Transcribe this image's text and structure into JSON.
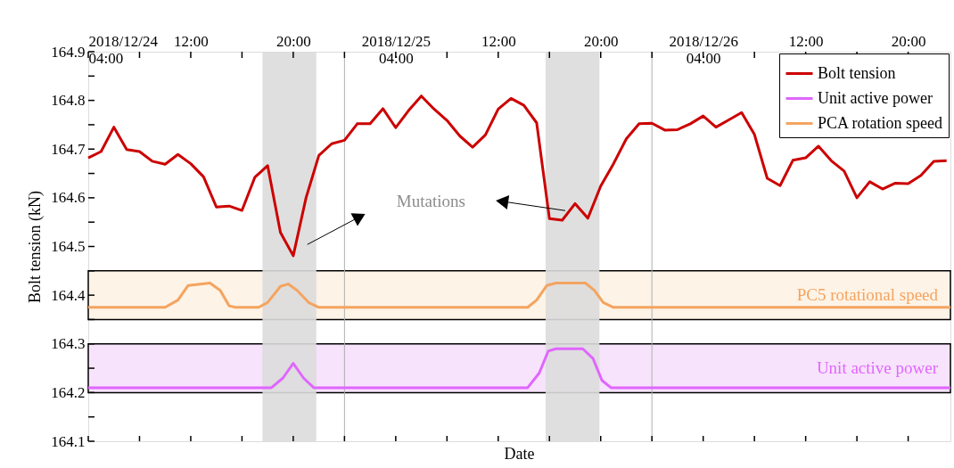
{
  "chart_data": {
    "type": "line",
    "xlabel": "Date",
    "ylabel": "Bolt tension (kN)",
    "xlim": [
      "2018-12-24T04:00",
      "2018-12-26T23:18"
    ],
    "ylim": [
      164.1,
      164.9
    ],
    "xticks": [
      {
        "value": "2018-12-24T04:00",
        "label": "2018/12/24\n04:00"
      },
      {
        "value": "2018-12-24T08:00",
        "label": null
      },
      {
        "value": "2018-12-24T12:00",
        "label": "12:00"
      },
      {
        "value": "2018-12-24T16:00",
        "label": null
      },
      {
        "value": "2018-12-24T20:00",
        "label": "20:00"
      },
      {
        "value": "2018-12-25T00:00",
        "label": null
      },
      {
        "value": "2018-12-25T04:00",
        "label": "2018/12/25\n04:00"
      },
      {
        "value": "2018-12-25T08:00",
        "label": null
      },
      {
        "value": "2018-12-25T12:00",
        "label": "12:00"
      },
      {
        "value": "2018-12-25T16:00",
        "label": null
      },
      {
        "value": "2018-12-25T20:00",
        "label": "20:00"
      },
      {
        "value": "2018-12-26T00:00",
        "label": null
      },
      {
        "value": "2018-12-26T04:00",
        "label": "2018/12/26\n04:00"
      },
      {
        "value": "2018-12-26T08:00",
        "label": null
      },
      {
        "value": "2018-12-26T12:00",
        "label": "12:00"
      },
      {
        "value": "2018-12-26T16:00",
        "label": null
      },
      {
        "value": "2018-12-26T20:00",
        "label": "20:00"
      }
    ],
    "yticks": [
      164.1,
      {
        "value": 164.15,
        "label": null
      },
      164.2,
      {
        "value": 164.25,
        "label": null
      },
      164.3,
      {
        "value": 164.35,
        "label": null
      },
      164.4,
      {
        "value": 164.45,
        "label": null
      },
      164.5,
      {
        "value": 164.55,
        "label": null
      },
      164.6,
      {
        "value": 164.65,
        "label": null
      },
      164.7,
      {
        "value": 164.75,
        "label": null
      },
      164.8,
      {
        "value": 164.85,
        "label": null
      },
      164.9
    ],
    "series": [
      {
        "name": "Bolt tension",
        "color": "#cc0000",
        "x": [
          "2018-12-24T04:00",
          "2018-12-24T05:00",
          "2018-12-24T06:00",
          "2018-12-24T07:00",
          "2018-12-24T08:00",
          "2018-12-24T09:00",
          "2018-12-24T10:00",
          "2018-12-24T11:00",
          "2018-12-24T12:00",
          "2018-12-24T13:00",
          "2018-12-24T14:00",
          "2018-12-24T15:00",
          "2018-12-24T16:00",
          "2018-12-24T17:00",
          "2018-12-24T18:00",
          "2018-12-24T19:00",
          "2018-12-24T20:00",
          "2018-12-24T21:00",
          "2018-12-24T22:00",
          "2018-12-24T23:00",
          "2018-12-25T00:00",
          "2018-12-25T01:00",
          "2018-12-25T02:00",
          "2018-12-25T03:00",
          "2018-12-25T04:00",
          "2018-12-25T05:00",
          "2018-12-25T06:00",
          "2018-12-25T07:00",
          "2018-12-25T08:00",
          "2018-12-25T09:00",
          "2018-12-25T10:00",
          "2018-12-25T11:00",
          "2018-12-25T12:00",
          "2018-12-25T13:00",
          "2018-12-25T14:00",
          "2018-12-25T15:00",
          "2018-12-25T16:00",
          "2018-12-25T17:00",
          "2018-12-25T18:00",
          "2018-12-25T19:00",
          "2018-12-25T20:00",
          "2018-12-25T21:00",
          "2018-12-25T22:00",
          "2018-12-25T23:00",
          "2018-12-26T00:00",
          "2018-12-26T01:00",
          "2018-12-26T02:00",
          "2018-12-26T03:00",
          "2018-12-26T04:00",
          "2018-12-26T05:00",
          "2018-12-26T06:00",
          "2018-12-26T07:00",
          "2018-12-26T08:00",
          "2018-12-26T09:00",
          "2018-12-26T10:00",
          "2018-12-26T11:00",
          "2018-12-26T12:00",
          "2018-12-26T13:00",
          "2018-12-26T14:00",
          "2018-12-26T15:00",
          "2018-12-26T16:00",
          "2018-12-26T17:00",
          "2018-12-26T18:00",
          "2018-12-26T19:00",
          "2018-12-26T20:00",
          "2018-12-26T21:00",
          "2018-12-26T22:00",
          "2018-12-26T23:00"
        ],
        "values": [
          164.682,
          164.695,
          164.745,
          164.699,
          164.695,
          164.675,
          164.669,
          164.689,
          164.67,
          164.643,
          164.581,
          164.583,
          164.574,
          164.642,
          164.666,
          164.529,
          164.481,
          164.6,
          164.687,
          164.711,
          164.718,
          164.752,
          164.752,
          164.783,
          164.744,
          164.779,
          164.809,
          164.782,
          164.759,
          164.727,
          164.704,
          164.729,
          164.782,
          164.804,
          164.79,
          164.754,
          164.557,
          164.554,
          164.588,
          164.558,
          164.624,
          164.67,
          164.721,
          164.752,
          164.753,
          164.739,
          164.74,
          164.752,
          164.768,
          164.745,
          164.76,
          164.775,
          164.73,
          164.64,
          164.625,
          164.677,
          164.682,
          164.706,
          164.676,
          164.655,
          164.6,
          164.633,
          164.618,
          164.63,
          164.629,
          164.646,
          164.675,
          164.676
        ]
      },
      {
        "name": "Unit active power",
        "color": "#e066ff",
        "x": [
          "2018-12-24T04:00",
          "2018-12-24T18:18",
          "2018-12-24T19:12",
          "2018-12-24T20:00",
          "2018-12-24T20:48",
          "2018-12-24T21:36",
          "2018-12-25T14:18",
          "2018-12-25T15:12",
          "2018-12-25T15:54",
          "2018-12-25T16:30",
          "2018-12-25T18:36",
          "2018-12-25T19:24",
          "2018-12-25T20:06",
          "2018-12-25T20:48",
          "2018-12-26T23:18"
        ],
        "values": [
          164.21,
          164.21,
          164.23,
          164.26,
          164.23,
          164.21,
          164.21,
          164.24,
          164.285,
          164.29,
          164.29,
          164.27,
          164.225,
          164.21,
          164.21
        ]
      },
      {
        "name": "PCA rotation speed",
        "color": "#f4a460",
        "x": [
          "2018-12-24T04:00",
          "2018-12-24T10:00",
          "2018-12-24T11:00",
          "2018-12-24T11:48",
          "2018-12-24T13:30",
          "2018-12-24T14:18",
          "2018-12-24T15:00",
          "2018-12-24T15:30",
          "2018-12-24T17:18",
          "2018-12-24T18:00",
          "2018-12-24T19:00",
          "2018-12-24T19:36",
          "2018-12-24T20:18",
          "2018-12-24T21:12",
          "2018-12-24T22:00",
          "2018-12-25T14:18",
          "2018-12-25T15:00",
          "2018-12-25T15:48",
          "2018-12-25T16:30",
          "2018-12-25T18:48",
          "2018-12-25T19:30",
          "2018-12-25T20:12",
          "2018-12-25T21:00",
          "2018-12-26T23:18"
        ],
        "values": [
          164.375,
          164.375,
          164.39,
          164.42,
          164.425,
          164.41,
          164.378,
          164.375,
          164.375,
          164.385,
          164.418,
          164.423,
          164.41,
          164.385,
          164.375,
          164.375,
          164.39,
          164.42,
          164.425,
          164.425,
          164.41,
          164.385,
          164.375,
          164.375
        ]
      }
    ],
    "bands": [
      {
        "axis": "y",
        "from": 164.35,
        "to": 164.45,
        "label": "PC5 rotational speed",
        "color": "#fdf3e6"
      },
      {
        "axis": "y",
        "from": 164.2,
        "to": 164.3,
        "label": "Unit active power",
        "color": "#f7e3fb"
      },
      {
        "axis": "x",
        "from": "2018-12-24T17:36",
        "to": "2018-12-24T21:48",
        "color": "#dcdcdc"
      },
      {
        "axis": "x",
        "from": "2018-12-25T15:42",
        "to": "2018-12-25T19:54",
        "color": "#dcdcdc"
      }
    ],
    "ref_lines": [
      {
        "axis": "x",
        "value": "2018-12-25T00:00",
        "color": "#b0b0b0"
      },
      {
        "axis": "x",
        "value": "2018-12-26T00:00",
        "color": "#b0b0b0"
      }
    ],
    "annotations": [
      "Mutations"
    ],
    "legend": "top right",
    "grid": false,
    "marker": "none",
    "line_style": "solid"
  }
}
